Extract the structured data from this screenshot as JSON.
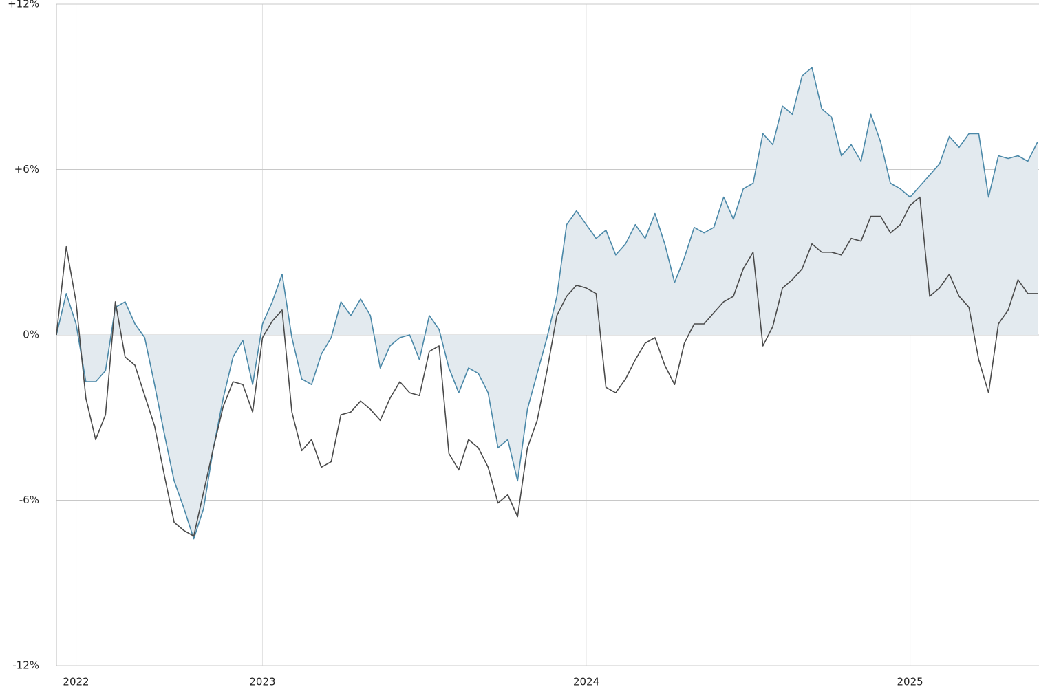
{
  "chart_data": {
    "type": "line",
    "categories": [
      null,
      null,
      "2022",
      null,
      null,
      null,
      null,
      null,
      null,
      null,
      null,
      null,
      null,
      null,
      null,
      null,
      null,
      null,
      null,
      null,
      null,
      "2023",
      null,
      null,
      null,
      null,
      null,
      null,
      null,
      null,
      null,
      null,
      null,
      null,
      null,
      null,
      null,
      null,
      null,
      null,
      null,
      null,
      null,
      null,
      null,
      null,
      null,
      null,
      null,
      null,
      null,
      null,
      null,
      null,
      "2024",
      null,
      null,
      null,
      null,
      null,
      null,
      null,
      null,
      null,
      null,
      null,
      null,
      null,
      null,
      null,
      null,
      null,
      null,
      null,
      null,
      null,
      null,
      null,
      null,
      null,
      null,
      null,
      null,
      null,
      null,
      null,
      null,
      "2025",
      null,
      null,
      null,
      null,
      null,
      null,
      null,
      null,
      null,
      null,
      null,
      null,
      null
    ],
    "series": [
      {
        "color": "#4a88a8",
        "fill": "#e3eaef",
        "values": [
          0,
          1.5,
          0.4,
          -1.7,
          -1.7,
          -1.3,
          1.0,
          1.2,
          0.4,
          -0.1,
          -1.8,
          -3.6,
          -5.3,
          -6.3,
          -7.4,
          -6.3,
          -4.1,
          -2.3,
          -0.8,
          -0.2,
          -1.8,
          0.4,
          1.2,
          2.2,
          -0.1,
          -1.6,
          -1.8,
          -0.7,
          -0.1,
          1.2,
          0.7,
          1.3,
          0.7,
          -1.2,
          -0.4,
          -0.1,
          0.0,
          -0.9,
          0.7,
          0.2,
          -1.2,
          -2.1,
          -1.2,
          -1.4,
          -2.1,
          -4.1,
          -3.8,
          -5.3,
          -2.7,
          -1.4,
          -0.1,
          1.4,
          4.0,
          4.5,
          4.0,
          3.5,
          3.8,
          2.9,
          3.3,
          4.0,
          3.5,
          4.4,
          3.3,
          1.9,
          2.8,
          3.9,
          3.7,
          3.9,
          5.0,
          4.2,
          5.3,
          5.5,
          7.3,
          6.9,
          8.3,
          8.0,
          9.4,
          9.7,
          8.2,
          7.9,
          6.5,
          6.9,
          6.3,
          8.0,
          7.0,
          5.5,
          5.3,
          5.0,
          5.4,
          5.8,
          6.2,
          7.2,
          6.8,
          7.3,
          7.3,
          5.0,
          6.5,
          6.4,
          6.5,
          6.3,
          7.0
        ]
      },
      {
        "color": "#4a4a4a",
        "values": [
          0,
          3.2,
          1.2,
          -2.3,
          -3.8,
          -2.9,
          1.2,
          -0.8,
          -1.1,
          -2.2,
          -3.3,
          -5.1,
          -6.8,
          -7.1,
          -7.3,
          -5.7,
          -4.1,
          -2.6,
          -1.7,
          -1.8,
          -2.8,
          -0.1,
          0.5,
          0.9,
          -2.8,
          -4.2,
          -3.8,
          -4.8,
          -4.6,
          -2.9,
          -2.8,
          -2.4,
          -2.7,
          -3.1,
          -2.3,
          -1.7,
          -2.1,
          -2.2,
          -0.6,
          -0.4,
          -4.3,
          -4.9,
          -3.8,
          -4.1,
          -4.8,
          -6.1,
          -5.8,
          -6.6,
          -4.1,
          -3.1,
          -1.3,
          0.7,
          1.4,
          1.8,
          1.7,
          1.5,
          -1.9,
          -2.1,
          -1.6,
          -0.9,
          -0.3,
          -0.1,
          -1.1,
          -1.8,
          -0.3,
          0.4,
          0.4,
          0.8,
          1.2,
          1.4,
          2.4,
          3.0,
          -0.4,
          0.3,
          1.7,
          2.0,
          2.4,
          3.3,
          3.0,
          3.0,
          2.9,
          3.5,
          3.4,
          4.3,
          4.3,
          3.7,
          4.0,
          4.7,
          5.0,
          1.4,
          1.7,
          2.2,
          1.4,
          1.0,
          -0.9,
          -2.1,
          0.4,
          0.9,
          2.0,
          1.5,
          1.5
        ]
      }
    ],
    "ylim": [
      -12,
      12
    ],
    "yticks": [
      {
        "value": 12,
        "label": "+12%"
      },
      {
        "value": 6,
        "label": "+6%"
      },
      {
        "value": 0,
        "label": "0%"
      },
      {
        "value": -6,
        "label": "-6%"
      },
      {
        "value": -12,
        "label": "-12%"
      }
    ],
    "grid": true
  }
}
